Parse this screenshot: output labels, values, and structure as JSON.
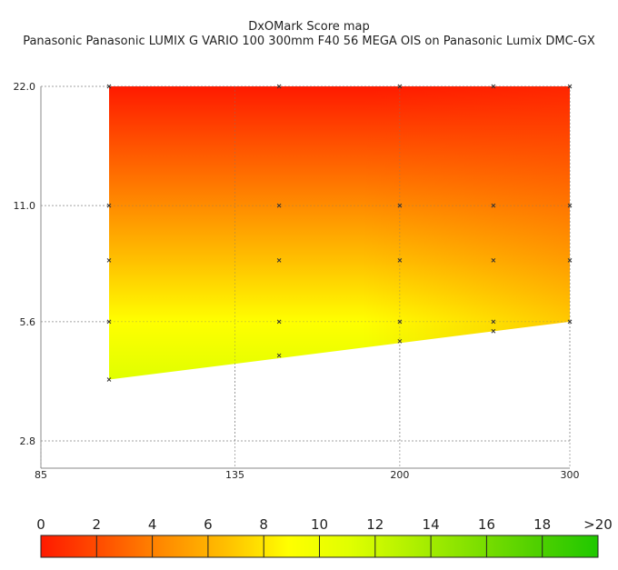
{
  "chart_data": {
    "type": "heatmap",
    "title": "DxOMark Score map",
    "subtitle": "Panasonic Panasonic LUMIX G VARIO 100 300mm F40 56 MEGA OIS on Panasonic Lumix DMC-GX",
    "xlabel": "",
    "ylabel": "",
    "x_axis": {
      "scale": "log",
      "range": [
        85,
        300
      ],
      "ticks": [
        85,
        135,
        200,
        300
      ]
    },
    "y_axis": {
      "scale": "log",
      "range": [
        2.8,
        22.0
      ],
      "ticks": [
        "2.8",
        "5.6",
        "11.0",
        "22.0"
      ]
    },
    "grid": true,
    "region": {
      "focal_lengths": [
        100,
        300
      ],
      "lower_aperture_at_min_focal": 4.0,
      "lower_aperture_at_max_focal": 5.6,
      "upper_aperture": 22.0
    },
    "measurement_points": [
      {
        "x": 100,
        "y": 22.0
      },
      {
        "x": 150,
        "y": 22.0
      },
      {
        "x": 200,
        "y": 22.0
      },
      {
        "x": 250,
        "y": 22.0
      },
      {
        "x": 300,
        "y": 22.0
      },
      {
        "x": 100,
        "y": 11.0
      },
      {
        "x": 150,
        "y": 11.0
      },
      {
        "x": 200,
        "y": 11.0
      },
      {
        "x": 250,
        "y": 11.0
      },
      {
        "x": 300,
        "y": 11.0
      },
      {
        "x": 100,
        "y": 8.0
      },
      {
        "x": 150,
        "y": 8.0
      },
      {
        "x": 200,
        "y": 8.0
      },
      {
        "x": 250,
        "y": 8.0
      },
      {
        "x": 300,
        "y": 8.0
      },
      {
        "x": 100,
        "y": 5.6
      },
      {
        "x": 150,
        "y": 5.6
      },
      {
        "x": 200,
        "y": 5.6
      },
      {
        "x": 250,
        "y": 5.6
      },
      {
        "x": 300,
        "y": 5.6
      },
      {
        "x": 100,
        "y": 4.0
      },
      {
        "x": 150,
        "y": 4.6
      },
      {
        "x": 200,
        "y": 5.0
      },
      {
        "x": 250,
        "y": 5.3
      }
    ],
    "score_gradient": [
      {
        "y": 22.0,
        "score": 0.5
      },
      {
        "y": 11.0,
        "score": 3.5
      },
      {
        "y": 8.0,
        "score": 7.0
      },
      {
        "y": 5.6,
        "score": 9.5
      },
      {
        "y": 4.0,
        "score": 11.5
      }
    ],
    "colorbar": {
      "labels": [
        "0",
        "2",
        "4",
        "6",
        "8",
        "10",
        "12",
        "14",
        "16",
        "18",
        ">20"
      ],
      "colors": [
        "#ff1a00",
        "#ff5000",
        "#ff8c00",
        "#ffc000",
        "#ffff00",
        "#e0ff00",
        "#b0f000",
        "#80e000",
        "#50d000",
        "#20c800"
      ]
    }
  }
}
